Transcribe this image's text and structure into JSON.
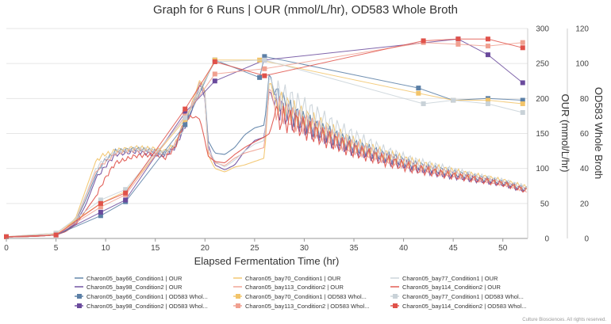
{
  "chart_data": {
    "type": "line",
    "title": "Graph for 6 Runs | OUR (mmol/L/hr), OD583 Whole Broth",
    "xlabel": "Elapsed Fermentation Time (hr)",
    "ylabel": "OUR (mmol/L/hr)",
    "y2label": "OD583 Whole Broth",
    "xlim": [
      0,
      52.5
    ],
    "ylim": [
      0,
      300
    ],
    "y2lim": [
      0,
      120
    ],
    "xticks": [
      "0",
      "5",
      "10",
      "15",
      "20",
      "25",
      "30",
      "35",
      "40",
      "45",
      "50"
    ],
    "yticks": [
      "0",
      "50",
      "100",
      "150",
      "200",
      "250",
      "300"
    ],
    "y2ticks": [
      "0",
      "20",
      "40",
      "60",
      "80",
      "100",
      "120"
    ],
    "grid": true,
    "legend_position": "bottom",
    "our_series": [
      {
        "name": "Charon05_bay66_Condition1 | OUR",
        "color": "#5b7fa6",
        "points": [
          [
            0,
            2
          ],
          [
            3,
            3
          ],
          [
            5,
            5
          ],
          [
            6,
            10
          ],
          [
            7,
            25
          ],
          [
            8,
            55
          ],
          [
            9,
            90
          ],
          [
            9.8,
            110
          ],
          [
            10.5,
            118
          ],
          [
            11,
            125
          ],
          [
            13,
            128
          ],
          [
            15,
            125
          ],
          [
            16,
            122
          ],
          [
            17,
            132
          ],
          [
            18,
            165
          ],
          [
            19,
            200
          ],
          [
            19.5,
            225
          ],
          [
            20,
            210
          ],
          [
            20.3,
            140
          ],
          [
            21,
            122
          ],
          [
            22,
            120
          ],
          [
            23,
            130
          ],
          [
            24,
            148
          ],
          [
            25,
            158
          ],
          [
            26,
            162
          ],
          [
            26.5,
            240
          ],
          [
            27,
            205
          ],
          [
            29,
            175
          ],
          [
            31,
            158
          ],
          [
            33,
            145
          ],
          [
            35,
            132
          ],
          [
            38,
            118
          ],
          [
            41,
            105
          ],
          [
            44,
            96
          ],
          [
            47,
            88
          ],
          [
            50,
            80
          ],
          [
            52.5,
            70
          ]
        ]
      },
      {
        "name": "Charon05_bay98_Condition2 | OUR",
        "color": "#6a4a9c",
        "points": [
          [
            0,
            2
          ],
          [
            3,
            3
          ],
          [
            5,
            5
          ],
          [
            6,
            10
          ],
          [
            7,
            22
          ],
          [
            8,
            48
          ],
          [
            9,
            85
          ],
          [
            9.8,
            100
          ],
          [
            10.5,
            112
          ],
          [
            11,
            120
          ],
          [
            13,
            124
          ],
          [
            15,
            120
          ],
          [
            16,
            118
          ],
          [
            17,
            130
          ],
          [
            18,
            160
          ],
          [
            19,
            195
          ],
          [
            19.5,
            222
          ],
          [
            20,
            200
          ],
          [
            20.3,
            135
          ],
          [
            21,
            105
          ],
          [
            22,
            98
          ],
          [
            23,
            105
          ],
          [
            24,
            125
          ],
          [
            25,
            140
          ],
          [
            26,
            145
          ],
          [
            26.5,
            215
          ],
          [
            27,
            190
          ],
          [
            29,
            170
          ],
          [
            31,
            155
          ],
          [
            33,
            140
          ],
          [
            35,
            128
          ],
          [
            38,
            115
          ],
          [
            41,
            102
          ],
          [
            44,
            92
          ],
          [
            47,
            85
          ],
          [
            50,
            78
          ],
          [
            52.5,
            68
          ]
        ]
      },
      {
        "name": "Charon05_bay70_Condition1 | OUR",
        "color": "#f2c46a",
        "points": [
          [
            0,
            2
          ],
          [
            3,
            3
          ],
          [
            5,
            6
          ],
          [
            6,
            14
          ],
          [
            7,
            30
          ],
          [
            8,
            70
          ],
          [
            9,
            110
          ],
          [
            9.8,
            120
          ],
          [
            10.5,
            122
          ],
          [
            11,
            126
          ],
          [
            13,
            130
          ],
          [
            15,
            128
          ],
          [
            16,
            125
          ],
          [
            17,
            135
          ],
          [
            18,
            168
          ],
          [
            19,
            205
          ],
          [
            19.5,
            228
          ],
          [
            20,
            208
          ],
          [
            20.3,
            120
          ],
          [
            21,
            100
          ],
          [
            22,
            95
          ],
          [
            23,
            102
          ],
          [
            24,
            105
          ],
          [
            25,
            110
          ],
          [
            26,
            115
          ],
          [
            26.5,
            230
          ],
          [
            27,
            200
          ],
          [
            29,
            180
          ],
          [
            31,
            165
          ],
          [
            33,
            150
          ],
          [
            35,
            135
          ],
          [
            38,
            120
          ],
          [
            41,
            108
          ],
          [
            44,
            98
          ],
          [
            47,
            90
          ],
          [
            50,
            82
          ],
          [
            52.5,
            72
          ]
        ]
      },
      {
        "name": "Charon05_bay113_Condition2 | OUR",
        "color": "#f0a090",
        "points": [
          [
            0,
            2
          ],
          [
            3,
            3
          ],
          [
            5,
            5
          ],
          [
            6,
            12
          ],
          [
            7,
            26
          ],
          [
            8,
            60
          ],
          [
            9,
            95
          ],
          [
            9.8,
            108
          ],
          [
            10.5,
            115
          ],
          [
            11,
            122
          ],
          [
            13,
            126
          ],
          [
            15,
            124
          ],
          [
            16,
            120
          ],
          [
            17,
            134
          ],
          [
            18,
            172
          ],
          [
            19,
            200
          ],
          [
            19.5,
            226
          ],
          [
            20,
            205
          ],
          [
            20.3,
            125
          ],
          [
            21,
            108
          ],
          [
            22,
            104
          ],
          [
            23,
            115
          ],
          [
            24,
            122
          ],
          [
            25,
            126
          ],
          [
            26,
            130
          ],
          [
            26.5,
            220
          ],
          [
            27,
            190
          ],
          [
            29,
            170
          ],
          [
            31,
            158
          ],
          [
            33,
            142
          ],
          [
            35,
            130
          ],
          [
            38,
            116
          ],
          [
            41,
            104
          ],
          [
            44,
            95
          ],
          [
            47,
            87
          ],
          [
            50,
            79
          ],
          [
            52.5,
            69
          ]
        ]
      },
      {
        "name": "Charon05_bay77_Condition1 | OUR",
        "color": "#c9d2d8",
        "points": [
          [
            0,
            2
          ],
          [
            3,
            3
          ],
          [
            5,
            5
          ],
          [
            6,
            12
          ],
          [
            7,
            28
          ],
          [
            8,
            62
          ],
          [
            9,
            100
          ],
          [
            9.8,
            112
          ],
          [
            10.5,
            118
          ],
          [
            11,
            124
          ],
          [
            13,
            128
          ],
          [
            15,
            126
          ],
          [
            16,
            122
          ],
          [
            17,
            130
          ],
          [
            18,
            162
          ],
          [
            19,
            198
          ],
          [
            19.5,
            224
          ],
          [
            20,
            204
          ],
          [
            20.3,
            130
          ],
          [
            21,
            110
          ],
          [
            22,
            102
          ],
          [
            23,
            112
          ],
          [
            24,
            125
          ],
          [
            25,
            135
          ],
          [
            26,
            140
          ],
          [
            26.5,
            235
          ],
          [
            27,
            210
          ],
          [
            29,
            195
          ],
          [
            31,
            178
          ],
          [
            33,
            160
          ],
          [
            35,
            145
          ],
          [
            38,
            125
          ],
          [
            41,
            110
          ],
          [
            44,
            100
          ],
          [
            47,
            90
          ],
          [
            50,
            82
          ],
          [
            52.5,
            72
          ]
        ]
      },
      {
        "name": "Charon05_bay114_Condition2 | OUR",
        "color": "#e0524a",
        "points": [
          [
            0,
            2
          ],
          [
            3,
            3
          ],
          [
            5,
            5
          ],
          [
            6,
            10
          ],
          [
            7,
            20
          ],
          [
            8,
            40
          ],
          [
            9,
            60
          ],
          [
            9.8,
            82
          ],
          [
            10.5,
            98
          ],
          [
            11,
            108
          ],
          [
            13,
            118
          ],
          [
            15,
            120
          ],
          [
            16,
            115
          ],
          [
            17,
            130
          ],
          [
            18,
            170
          ],
          [
            19,
            175
          ],
          [
            19.5,
            170
          ],
          [
            20,
            140
          ],
          [
            20.3,
            118
          ],
          [
            21,
            110
          ],
          [
            22,
            108
          ],
          [
            23,
            120
          ],
          [
            24,
            130
          ],
          [
            25,
            138
          ],
          [
            26,
            145
          ],
          [
            26.5,
            150
          ],
          [
            27,
            175
          ],
          [
            29,
            165
          ],
          [
            31,
            150
          ],
          [
            33,
            138
          ],
          [
            35,
            126
          ],
          [
            38,
            112
          ],
          [
            41,
            100
          ],
          [
            44,
            92
          ],
          [
            47,
            85
          ],
          [
            50,
            78
          ],
          [
            52.5,
            68
          ]
        ]
      }
    ],
    "od_series": [
      {
        "name": "Charon05_bay66_Condition1 | OD583 Whol...",
        "color": "#5b7fa6",
        "points": [
          [
            0,
            1
          ],
          [
            5,
            2
          ],
          [
            9.5,
            13
          ],
          [
            12,
            21
          ],
          [
            18,
            65
          ],
          [
            21,
            102
          ],
          [
            25.5,
            92
          ],
          [
            26,
            104
          ],
          [
            41.5,
            86
          ],
          [
            45,
            79
          ],
          [
            48.5,
            80
          ],
          [
            52,
            79
          ]
        ]
      },
      {
        "name": "Charon05_bay98_Condition2 | OD583 Whol...",
        "color": "#6a4a9c",
        "points": [
          [
            0,
            1
          ],
          [
            5,
            2
          ],
          [
            9.5,
            15
          ],
          [
            12,
            22
          ],
          [
            18,
            72
          ],
          [
            21,
            90
          ],
          [
            26,
            102
          ],
          [
            45.5,
            114
          ],
          [
            48.5,
            105
          ],
          [
            52,
            89
          ]
        ]
      },
      {
        "name": "Charon05_bay70_Condition1 | OD583 Whol...",
        "color": "#f2c46a",
        "points": [
          [
            0,
            1
          ],
          [
            5,
            3
          ],
          [
            9.5,
            20
          ],
          [
            12,
            27
          ],
          [
            18,
            68
          ],
          [
            21,
            102
          ],
          [
            25.5,
            102
          ],
          [
            41.5,
            83
          ],
          [
            45,
            79
          ],
          [
            48.5,
            79
          ],
          [
            52,
            77
          ]
        ]
      },
      {
        "name": "Charon05_bay113_Condition2 | OD583 Whol...",
        "color": "#f0a090",
        "points": [
          [
            0,
            1
          ],
          [
            5,
            2
          ],
          [
            9.5,
            18
          ],
          [
            12,
            25
          ],
          [
            18,
            70
          ],
          [
            21,
            94
          ],
          [
            26,
            97
          ],
          [
            42,
            112
          ],
          [
            45.5,
            111
          ],
          [
            48.5,
            110
          ],
          [
            52,
            112
          ]
        ]
      },
      {
        "name": "Charon05_bay77_Condition1 | OD583 Whol...",
        "color": "#c9d2d8",
        "points": [
          [
            0,
            1
          ],
          [
            5,
            3
          ],
          [
            9.5,
            22
          ],
          [
            12,
            28
          ],
          [
            18,
            69
          ],
          [
            21,
            101
          ],
          [
            26,
            102
          ],
          [
            42,
            77
          ],
          [
            45,
            79
          ],
          [
            48.5,
            77
          ],
          [
            52,
            72
          ]
        ]
      },
      {
        "name": "Charon05_bay114_Condition2 | OD583 Whol...",
        "color": "#e0524a",
        "points": [
          [
            0,
            1
          ],
          [
            5,
            2
          ],
          [
            9.5,
            20
          ],
          [
            12,
            26
          ],
          [
            18,
            74
          ],
          [
            21,
            101
          ],
          [
            26,
            93
          ],
          [
            42,
            113
          ],
          [
            45.5,
            114
          ],
          [
            48.5,
            114
          ],
          [
            52,
            109
          ]
        ]
      }
    ],
    "legend_order": [
      [
        "Charon05_bay66_Condition1 | OUR",
        "Charon05_bay70_Condition1 | OUR",
        "Charon05_bay77_Condition1 | OUR"
      ],
      [
        "Charon05_bay98_Condition2 | OUR",
        "Charon05_bay113_Condition2 | OUR",
        "Charon05_bay114_Condition2 | OUR"
      ],
      [
        "Charon05_bay66_Condition1 | OD583 Whol...",
        "Charon05_bay70_Condition1 | OD583 Whol...",
        "Charon05_bay77_Condition1 | OD583 Whol..."
      ],
      [
        "Charon05_bay98_Condition2 | OD583 Whol...",
        "Charon05_bay113_Condition2 | OD583 Whol...",
        "Charon05_bay114_Condition2 | OD583 Whol..."
      ]
    ]
  },
  "footer": "Culture Biosciences. All rights reserved."
}
